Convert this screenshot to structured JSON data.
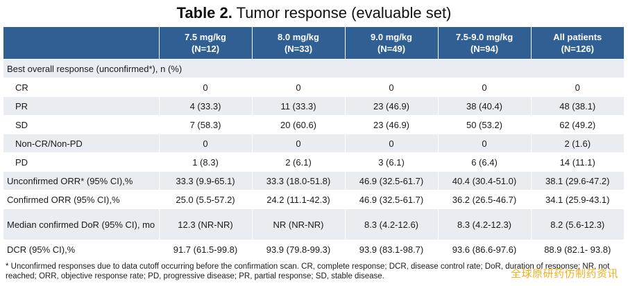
{
  "title": {
    "bold": "Table 2.",
    "rest": " Tumor response (evaluable set)"
  },
  "columns": [
    {
      "line1": "",
      "line2": ""
    },
    {
      "line1": "7.5 mg/kg",
      "line2": "(N=12)"
    },
    {
      "line1": "8.0 mg/kg",
      "line2": "(N=33)"
    },
    {
      "line1": "9.0 mg/kg",
      "line2": "(N=49)"
    },
    {
      "line1": "7.5-9.0 mg/kg",
      "line2": "(N=94)"
    },
    {
      "line1": "All patients",
      "line2": "(N=126)"
    }
  ],
  "section_label": "Best overall response (unconfirmed*), n (%)",
  "rows": [
    {
      "label": "CR",
      "cells": [
        "0",
        "0",
        "0",
        "0",
        "0"
      ]
    },
    {
      "label": "PR",
      "cells": [
        "4 (33.3)",
        "11 (33.3)",
        "23 (46.9)",
        "38 (40.4)",
        "48 (38.1)"
      ]
    },
    {
      "label": "SD",
      "cells": [
        "7 (58.3)",
        "20 (60.6)",
        "23 (46.9)",
        "50 (53.2)",
        "62 (49.2)"
      ]
    },
    {
      "label": "Non-CR/Non-PD",
      "cells": [
        "0",
        "0",
        "0",
        "0",
        "2 (1.6)"
      ]
    },
    {
      "label": "PD",
      "cells": [
        "1 (8.3)",
        "2 (6.1)",
        "3 (6.1)",
        "6 (6.4)",
        "14 (11.1)"
      ]
    },
    {
      "label": "Unconfirmed ORR* (95% CI),%",
      "cells": [
        "33.3 (9.9-65.1)",
        "33.3 (18.0-51.8)",
        "46.9 (32.5-61.7)",
        "40.4 (30.4-51.0)",
        "38.1 (29.6-47.2)"
      ]
    },
    {
      "label": "Confirmed ORR (95% CI),%",
      "cells": [
        "25.0 (5.5-57.2)",
        "24.2 (11.1-42.3)",
        "46.9 (32.5-61.7)",
        "36.2 (26.5-46.7)",
        "34.1 (25.9-43.1)"
      ]
    },
    {
      "label": "Median confirmed DoR (95% CI), mo",
      "cells": [
        "12.3 (NR-NR)",
        "NR (NR-NR)",
        "8.3 (4.2-12.6)",
        "8.3 (4.2-12.3)",
        "8.2 (5.6-12.3)"
      ]
    },
    {
      "label": "DCR (95% CI),%",
      "cells": [
        "91.7 (61.5-99.8)",
        "93.9 (79.8-99.3)",
        "93.9 (83.1-98.7)",
        "93.6 (86.6-97.6)",
        "88.9 (82.1- 93.8)"
      ]
    }
  ],
  "footnote": "* Unconfirmed responses due to data cutoff occurring before the confirmation scan. CR, complete response; DCR, disease control rate; DoR, duration of response; NR, not reached; ORR, objective response rate; PD, progressive disease; PR, partial response; SD, stable disease.",
  "watermark": "全球原研药仿制药资讯"
}
